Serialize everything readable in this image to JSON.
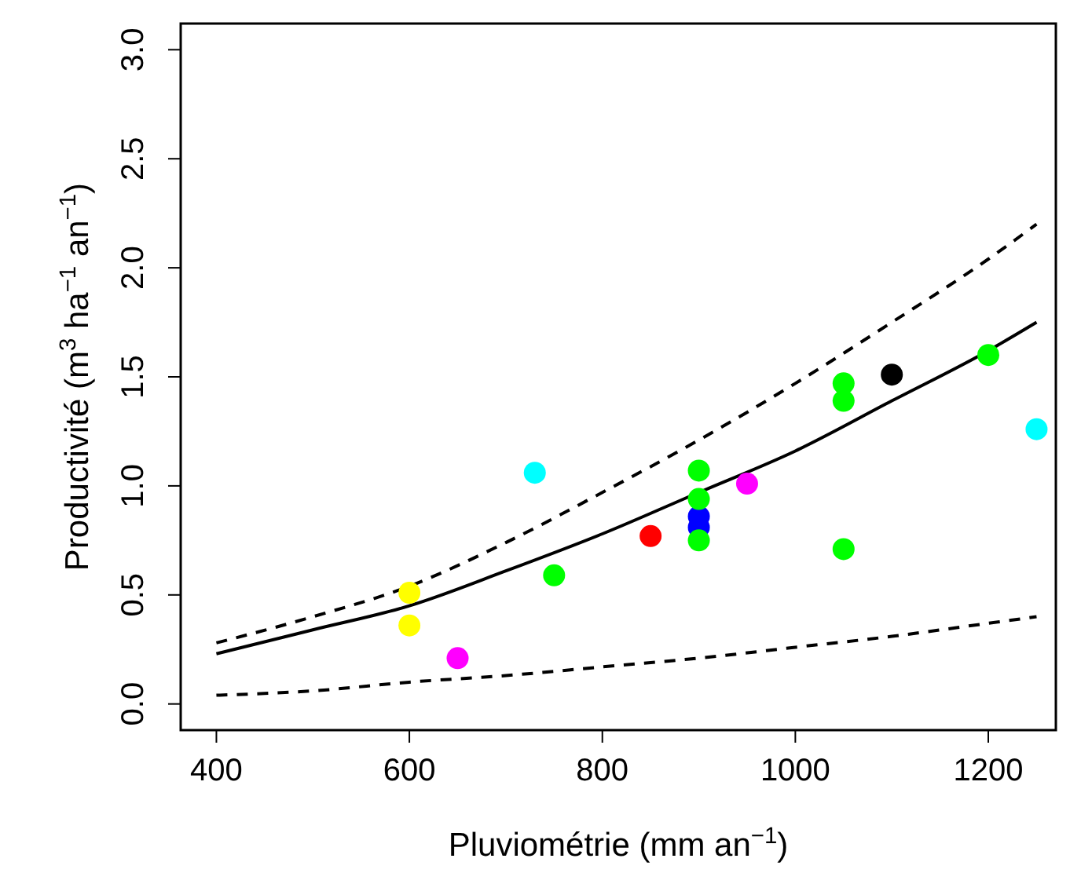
{
  "chart_data": {
    "type": "scatter",
    "xlabel": "Pluviométrie (mm an$^{−1}$)",
    "ylabel": "Productivité (m$^{3}$ ha$^{−1}$ an$^{−1}$)",
    "xlim": [
      363,
      1270
    ],
    "ylim": [
      -0.12,
      3.12
    ],
    "xticks": [
      400,
      600,
      800,
      1000,
      1200
    ],
    "yticks": [
      {
        "value": 0,
        "label": "0.0"
      },
      0.5,
      {
        "value": 1,
        "label": "1.0"
      },
      1.5,
      {
        "value": 2,
        "label": "2.0"
      },
      2.5,
      {
        "value": 3,
        "label": "3.0"
      }
    ],
    "grid": false,
    "legend": false,
    "marker": "circle",
    "series": [
      {
        "color": "#ffff00",
        "x": [
          600,
          600
        ],
        "values": [
          0.51,
          0.36
        ]
      },
      {
        "color": "#ff00ff",
        "x": [
          650,
          950
        ],
        "values": [
          0.21,
          1.01
        ]
      },
      {
        "color": "#00ffff",
        "x": [
          730,
          1250
        ],
        "values": [
          1.06,
          1.26
        ]
      },
      {
        "color": "#ff0000",
        "x": [
          850
        ],
        "values": [
          0.77
        ]
      },
      {
        "color": "#0000ff",
        "x": [
          900,
          900
        ],
        "values": [
          0.86,
          0.81
        ]
      },
      {
        "color": "#00ff00",
        "x": [
          750,
          900,
          900,
          900,
          1050,
          1050,
          1050,
          1200
        ],
        "values": [
          0.59,
          1.07,
          0.94,
          0.75,
          1.47,
          1.39,
          0.71,
          1.6
        ]
      },
      {
        "color": "#000000",
        "x": [
          1100
        ],
        "values": [
          1.51
        ]
      },
      {
        "type": "line",
        "color": "#000000",
        "line_style": "solid",
        "marker": "none",
        "x": [
          400,
          500,
          600,
          700,
          800,
          900,
          1000,
          1100,
          1200,
          1250
        ],
        "values": [
          0.23,
          0.34,
          0.45,
          0.61,
          0.78,
          0.97,
          1.16,
          1.39,
          1.62,
          1.75
        ]
      },
      {
        "type": "line",
        "color": "#000000",
        "line_style": "dashed",
        "marker": "none",
        "x": [
          400,
          500,
          600,
          700,
          800,
          900,
          1000,
          1100,
          1200,
          1250
        ],
        "values": [
          0.28,
          0.4,
          0.54,
          0.74,
          0.97,
          1.21,
          1.47,
          1.75,
          2.04,
          2.2
        ]
      },
      {
        "type": "line",
        "color": "#000000",
        "line_style": "dashed",
        "marker": "none",
        "x": [
          400,
          500,
          600,
          700,
          800,
          900,
          1000,
          1100,
          1200,
          1250
        ],
        "values": [
          0.04,
          0.06,
          0.1,
          0.13,
          0.17,
          0.21,
          0.26,
          0.31,
          0.37,
          0.4
        ]
      }
    ]
  }
}
